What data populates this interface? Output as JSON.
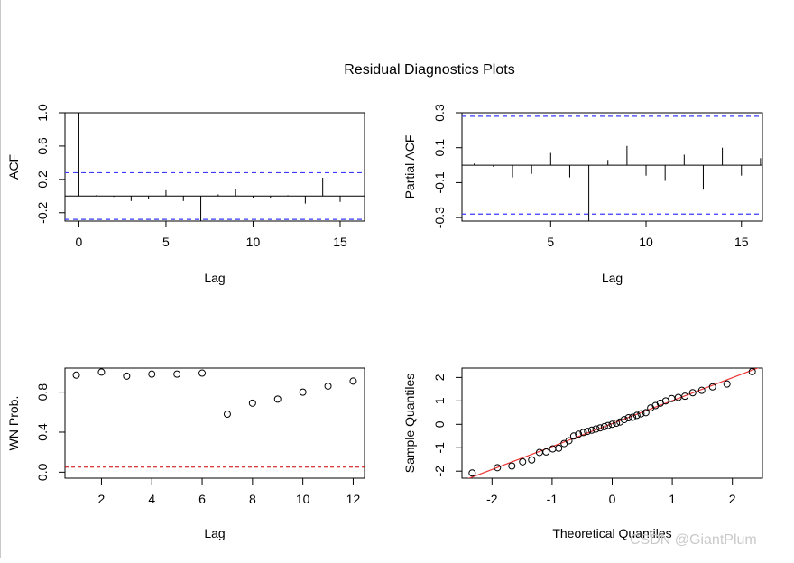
{
  "figure": {
    "title": "Residual Diagnostics Plots"
  },
  "watermark": "CSDN @GiantPlum",
  "colors": {
    "ci_line": "#3b3bff",
    "ref_line_wn": "#cc0000",
    "qq_line": "#ee3333",
    "ink": "#000000"
  },
  "chart_data": [
    {
      "id": "acf",
      "type": "bar",
      "xlabel": "Lag",
      "ylabel": "ACF",
      "xlim": [
        -0.8,
        16.4
      ],
      "ylim": [
        -0.3,
        1.0
      ],
      "xticks": [
        0,
        5,
        10,
        15
      ],
      "yticks": [
        -0.2,
        0.2,
        0.6,
        1.0
      ],
      "ytick_labels": [
        "-0.2",
        "0.2",
        "0.6",
        "1.0"
      ],
      "lags": [
        0,
        1,
        2,
        3,
        4,
        5,
        6,
        7,
        8,
        9,
        10,
        11,
        12,
        13,
        14,
        15
      ],
      "values": [
        1.0,
        0.01,
        -0.01,
        -0.06,
        -0.04,
        0.07,
        -0.06,
        -0.3,
        0.02,
        0.09,
        -0.02,
        -0.03,
        0.01,
        -0.09,
        0.22,
        -0.07
      ],
      "ci": [
        0.28,
        -0.28
      ],
      "zero_line": true
    },
    {
      "id": "pacf",
      "type": "bar",
      "xlabel": "Lag",
      "ylabel": "Partial ACF",
      "xlim": [
        0.35,
        16.1
      ],
      "ylim": [
        -0.32,
        0.3
      ],
      "xticks": [
        5,
        10,
        15
      ],
      "yticks": [
        -0.3,
        -0.1,
        0.1,
        0.3
      ],
      "ytick_labels": [
        "-0.3",
        "-0.1",
        "0.1",
        "0.3"
      ],
      "lags": [
        1,
        2,
        3,
        4,
        5,
        6,
        7,
        8,
        9,
        10,
        11,
        12,
        13,
        14,
        15,
        16
      ],
      "values": [
        0.01,
        -0.01,
        -0.07,
        -0.05,
        0.07,
        -0.07,
        -0.32,
        0.03,
        0.11,
        -0.06,
        -0.09,
        0.06,
        -0.14,
        0.1,
        -0.06,
        0.04
      ],
      "ci": [
        0.28,
        -0.28
      ],
      "zero_line": true
    },
    {
      "id": "wn",
      "type": "scatter",
      "xlabel": "Lag",
      "ylabel": "WN Prob.",
      "xlim": [
        0.55,
        12.45
      ],
      "ylim": [
        -0.06,
        1.04
      ],
      "xticks": [
        2,
        4,
        6,
        8,
        10,
        12
      ],
      "yticks": [
        0.0,
        0.4,
        0.8
      ],
      "ytick_labels": [
        "0.0",
        "0.4",
        "0.8"
      ],
      "x": [
        1,
        2,
        3,
        4,
        5,
        6,
        7,
        8,
        9,
        10,
        11,
        12
      ],
      "y": [
        0.97,
        1.0,
        0.96,
        0.98,
        0.98,
        0.99,
        0.58,
        0.69,
        0.73,
        0.8,
        0.86,
        0.91
      ],
      "ref_line": 0.05
    },
    {
      "id": "qq",
      "type": "scatter",
      "xlabel": "Theoretical Quantiles",
      "ylabel": "Sample Quantiles",
      "xlim": [
        -2.5,
        2.5
      ],
      "ylim": [
        -2.3,
        2.4
      ],
      "xticks": [
        -2,
        -1,
        0,
        1,
        2
      ],
      "yticks": [
        -2,
        -1,
        0,
        1,
        2
      ],
      "ytick_labels": [
        "-2",
        "-1",
        "0",
        "1",
        "2"
      ],
      "x": [
        -2.33,
        -1.91,
        -1.67,
        -1.49,
        -1.34,
        -1.21,
        -1.1,
        -0.99,
        -0.89,
        -0.8,
        -0.72,
        -0.64,
        -0.56,
        -0.48,
        -0.41,
        -0.34,
        -0.27,
        -0.2,
        -0.13,
        -0.07,
        0.0,
        0.07,
        0.13,
        0.2,
        0.27,
        0.34,
        0.41,
        0.48,
        0.56,
        0.64,
        0.72,
        0.8,
        0.89,
        0.99,
        1.1,
        1.21,
        1.34,
        1.49,
        1.67,
        1.91,
        2.33
      ],
      "y": [
        -2.08,
        -1.85,
        -1.78,
        -1.6,
        -1.52,
        -1.2,
        -1.18,
        -1.05,
        -1.02,
        -0.82,
        -0.7,
        -0.5,
        -0.42,
        -0.35,
        -0.3,
        -0.25,
        -0.2,
        -0.15,
        -0.1,
        -0.05,
        0.0,
        0.05,
        0.1,
        0.2,
        0.28,
        0.3,
        0.38,
        0.45,
        0.5,
        0.7,
        0.8,
        0.9,
        1.0,
        1.1,
        1.15,
        1.2,
        1.35,
        1.45,
        1.6,
        1.72,
        2.25
      ],
      "ref_line": {
        "slope": 0.98,
        "intercept": 0.03
      }
    }
  ]
}
